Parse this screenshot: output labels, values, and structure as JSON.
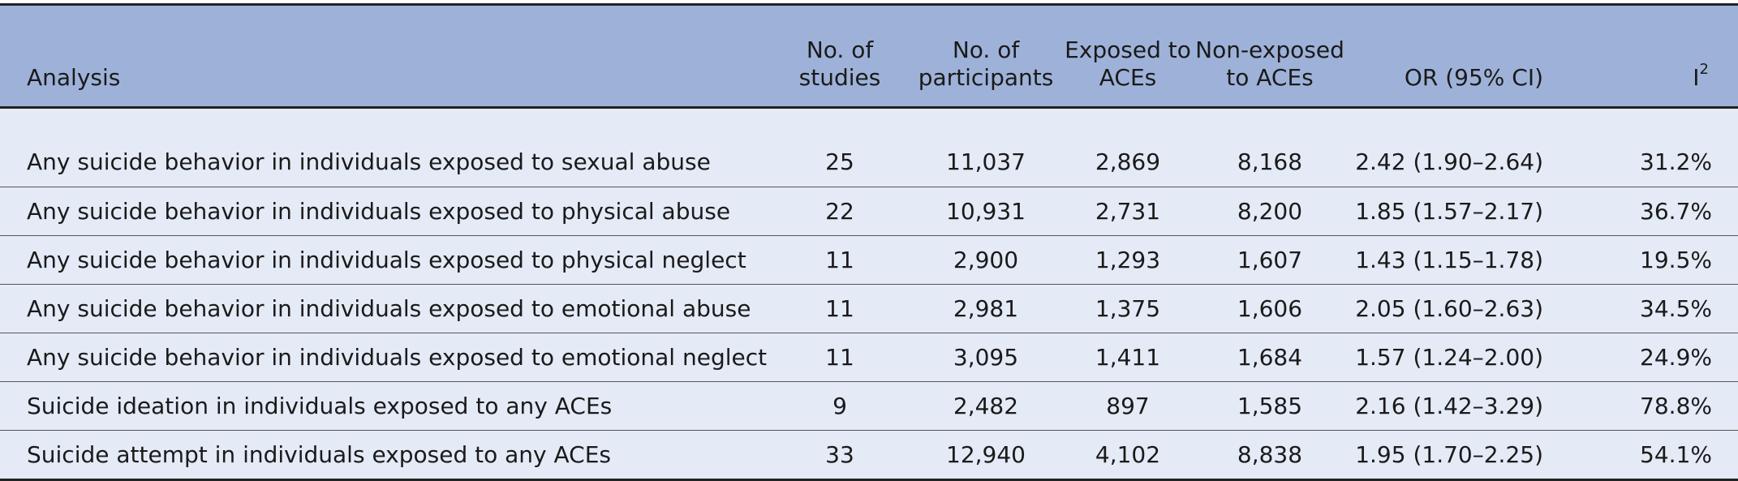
{
  "columns": {
    "analysis": "Analysis",
    "studies_line1": "No. of",
    "studies_line2": "studies",
    "participants_line1": "No. of",
    "participants_line2": "participants",
    "exposed_line1": "Exposed to",
    "exposed_line2": "ACEs",
    "nonexposed_line1": "Non-exposed",
    "nonexposed_line2": "to ACEs",
    "or_ci": "OR (95% CI)",
    "i2_base": "I",
    "i2_sup": "2"
  },
  "rows": [
    {
      "analysis": "Any suicide behavior in individuals exposed to sexual abuse",
      "studies": "25",
      "participants": "11,037",
      "exposed": "2,869",
      "nonexposed": "8,168",
      "or_ci": "2.42 (1.90–2.64)",
      "i2": "31.2%"
    },
    {
      "analysis": "Any suicide behavior in individuals exposed to physical abuse",
      "studies": "22",
      "participants": "10,931",
      "exposed": "2,731",
      "nonexposed": "8,200",
      "or_ci": "1.85 (1.57–2.17)",
      "i2": "36.7%"
    },
    {
      "analysis": "Any suicide behavior in individuals exposed to physical neglect",
      "studies": "11",
      "participants": "2,900",
      "exposed": "1,293",
      "nonexposed": "1,607",
      "or_ci": "1.43 (1.15–1.78)",
      "i2": "19.5%"
    },
    {
      "analysis": "Any suicide behavior in individuals exposed to emotional abuse",
      "studies": "11",
      "participants": "2,981",
      "exposed": "1,375",
      "nonexposed": "1,606",
      "or_ci": "2.05 (1.60–2.63)",
      "i2": "34.5%"
    },
    {
      "analysis": "Any suicide behavior in individuals exposed to emotional neglect",
      "studies": "11",
      "participants": "3,095",
      "exposed": "1,411",
      "nonexposed": "1,684",
      "or_ci": "1.57 (1.24–2.00)",
      "i2": "24.9%"
    },
    {
      "analysis": "Suicide ideation in individuals exposed to any ACEs",
      "studies": "9",
      "participants": "2,482",
      "exposed": "897",
      "nonexposed": "1,585",
      "or_ci": "2.16 (1.42–3.29)",
      "i2": "78.8%"
    },
    {
      "analysis": "Suicide attempt in individuals exposed to any ACEs",
      "studies": "33",
      "participants": "12,940",
      "exposed": "4,102",
      "nonexposed": "8,838",
      "or_ci": "1.95 (1.70–2.25)",
      "i2": "54.1%"
    }
  ]
}
